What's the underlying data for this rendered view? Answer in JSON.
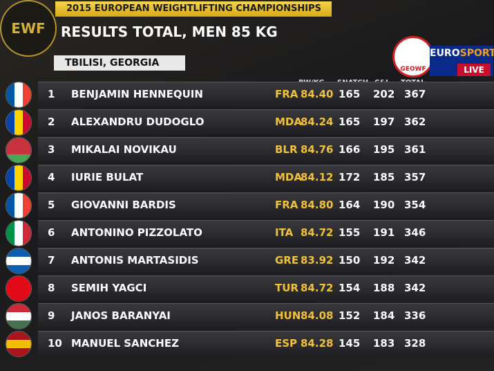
{
  "header": {
    "logo": "EWF",
    "title": "2015 EUROPEAN WEIGHTLIFTING CHAMPIONSHIPS",
    "subtitle": "RESULTS TOTAL, MEN 85 KG",
    "location": "TBILISI, GEORGIA",
    "federation": "GEOWF",
    "broadcaster": [
      "EURO",
      "SPORT"
    ],
    "live": "LIVE"
  },
  "table": {
    "columns": [
      "BW/KG",
      "SNATCH",
      "C&J",
      "TOTAL"
    ],
    "rows": [
      [
        "1",
        "BENJAMIN HENNEQUIN",
        "FRA",
        "84.40",
        "165",
        "202",
        "367"
      ],
      [
        "2",
        "ALEXANDRU DUDOGLO",
        "MDA",
        "84.24",
        "165",
        "197",
        "362"
      ],
      [
        "3",
        "MIKALAI NOVIKAU",
        "BLR",
        "84.76",
        "166",
        "195",
        "361"
      ],
      [
        "4",
        "IURIE BULAT",
        "MDA",
        "84.12",
        "172",
        "185",
        "357"
      ],
      [
        "5",
        "GIOVANNI BARDIS",
        "FRA",
        "84.80",
        "164",
        "190",
        "354"
      ],
      [
        "6",
        "ANTONINO PIZZOLATO",
        "ITA",
        "84.72",
        "155",
        "191",
        "346"
      ],
      [
        "7",
        "ANTONIS MARTASIDIS",
        "GRE",
        "83.92",
        "150",
        "192",
        "342"
      ],
      [
        "8",
        "SEMIH YAGCI",
        "TUR",
        "84.72",
        "154",
        "188",
        "342"
      ],
      [
        "9",
        "JANOS BARANYAI",
        "HUN",
        "84.08",
        "152",
        "184",
        "336"
      ],
      [
        "10",
        "MANUEL SANCHEZ",
        "ESP",
        "84.28",
        "145",
        "183",
        "328"
      ]
    ]
  }
}
